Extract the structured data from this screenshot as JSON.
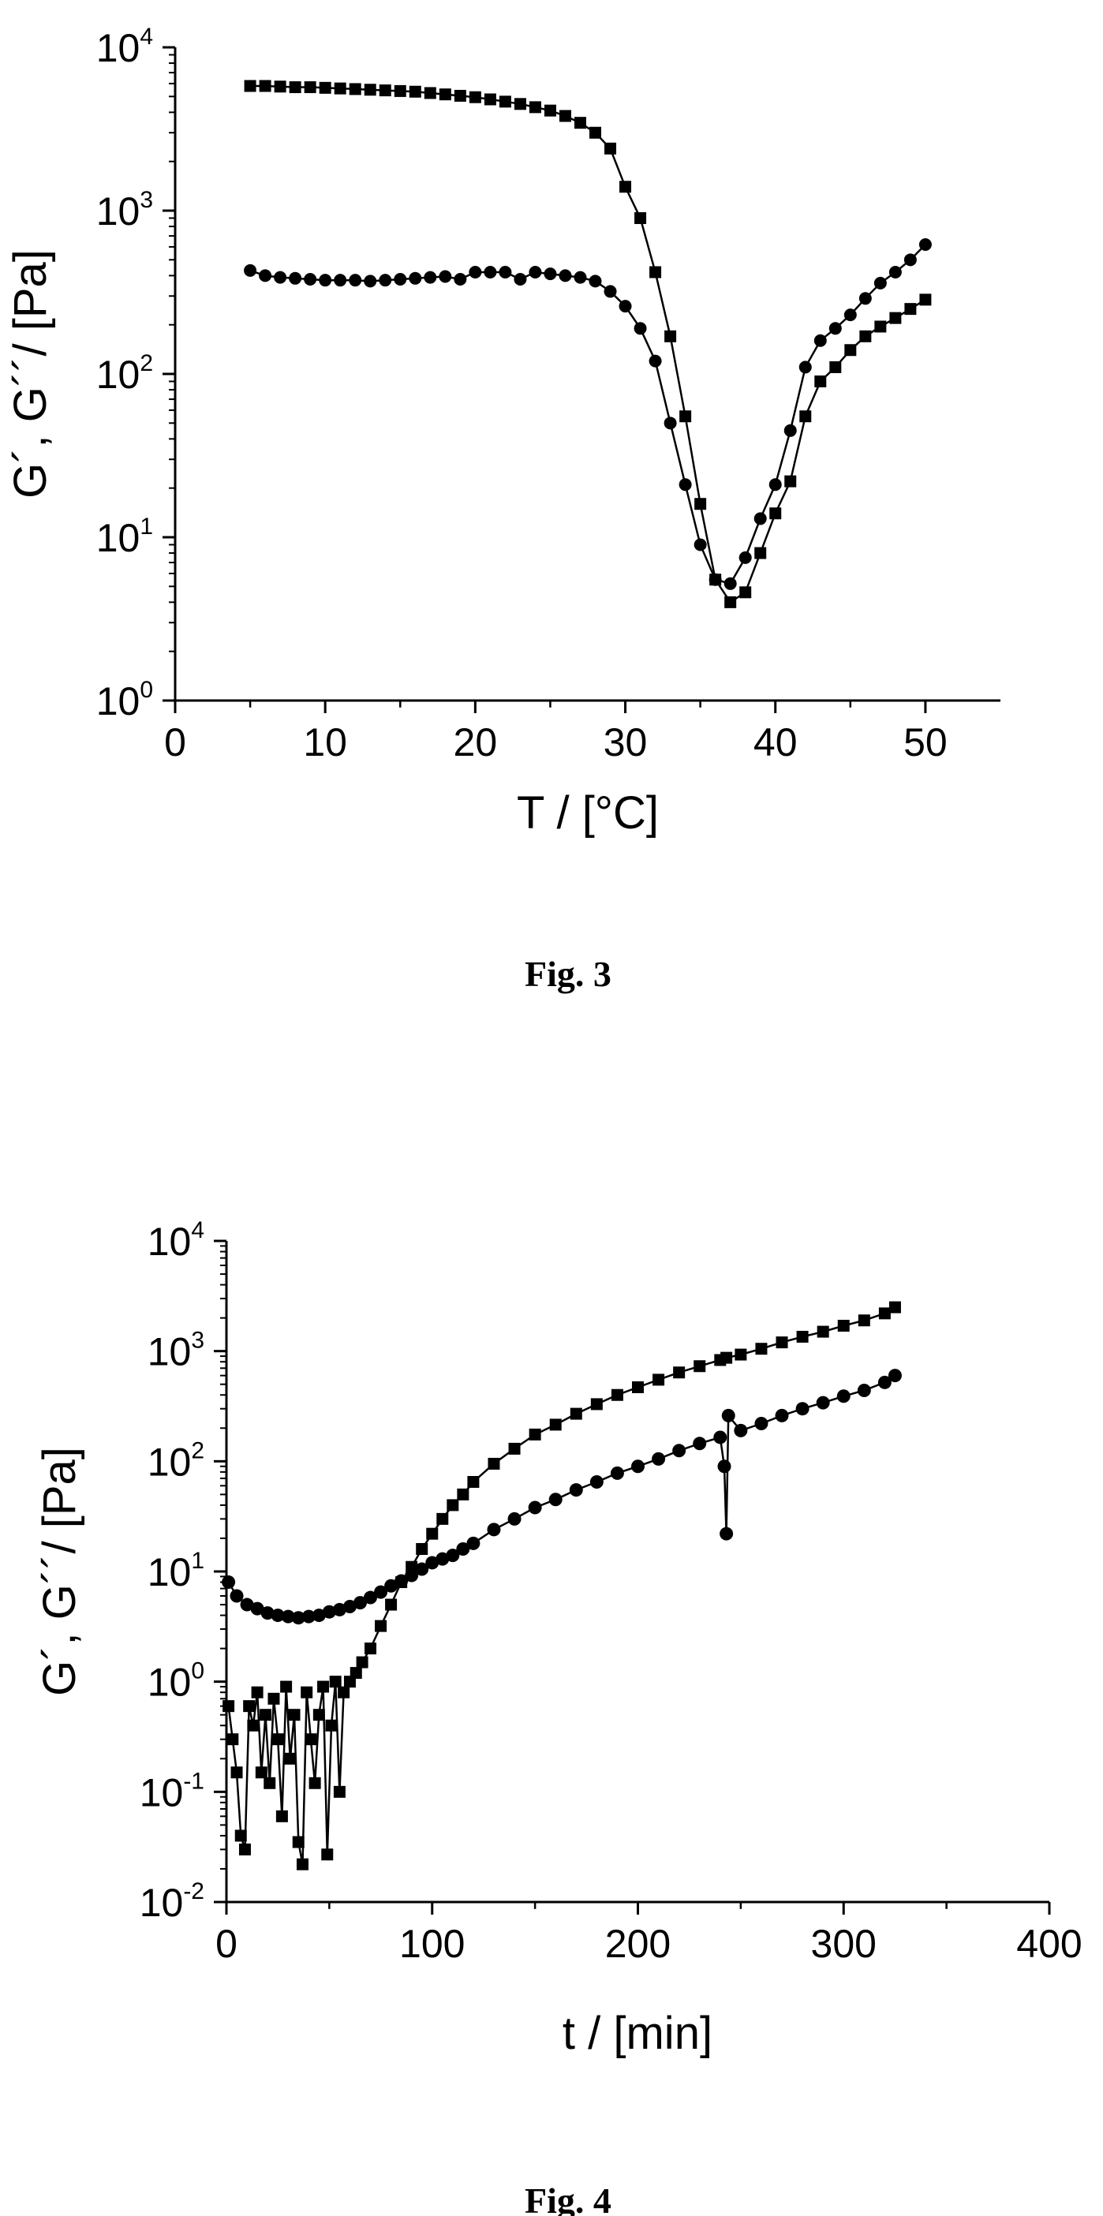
{
  "chart_data": [
    {
      "type": "scatter",
      "caption": "Fig. 3",
      "xlabel": "T / [°C]",
      "ylabel": "G´, G´´/ [Pa]",
      "xlim": [
        0,
        55
      ],
      "ylim": [
        1,
        10000
      ],
      "yscale": "log",
      "x_ticks": [
        0,
        10,
        20,
        30,
        40,
        50
      ],
      "y_ticks": [
        {
          "base": "10",
          "exp": "0",
          "value": 1
        },
        {
          "base": "10",
          "exp": "1",
          "value": 10
        },
        {
          "base": "10",
          "exp": "2",
          "value": 100
        },
        {
          "base": "10",
          "exp": "3",
          "value": 1000
        },
        {
          "base": "10",
          "exp": "4",
          "value": 10000
        }
      ],
      "grid": false,
      "series": [
        {
          "marker": "square",
          "x": [
            5,
            6,
            7,
            8,
            9,
            10,
            11,
            12,
            13,
            14,
            15,
            16,
            17,
            18,
            19,
            20,
            21,
            22,
            23,
            24,
            25,
            26,
            27,
            28,
            29,
            30,
            31,
            32,
            33,
            34,
            35,
            36,
            37,
            38,
            39,
            40,
            41,
            42,
            43,
            44,
            45,
            46,
            47,
            48,
            49,
            50
          ],
          "y": [
            5800,
            5800,
            5750,
            5700,
            5700,
            5650,
            5600,
            5550,
            5500,
            5450,
            5400,
            5350,
            5250,
            5150,
            5050,
            4950,
            4800,
            4650,
            4500,
            4300,
            4100,
            3800,
            3450,
            3000,
            2400,
            1400,
            900,
            420,
            170,
            55,
            16,
            5.5,
            4,
            4.6,
            8,
            14,
            22,
            55,
            90,
            110,
            140,
            170,
            195,
            220,
            250,
            285
          ]
        },
        {
          "marker": "circle",
          "x": [
            5,
            6,
            7,
            8,
            9,
            10,
            11,
            12,
            13,
            14,
            15,
            16,
            17,
            18,
            19,
            20,
            21,
            22,
            23,
            24,
            25,
            26,
            27,
            28,
            29,
            30,
            31,
            32,
            33,
            34,
            35,
            36,
            37,
            38,
            39,
            40,
            41,
            42,
            43,
            44,
            45,
            46,
            47,
            48,
            49,
            50
          ],
          "y": [
            430,
            400,
            390,
            385,
            380,
            375,
            375,
            375,
            370,
            375,
            380,
            385,
            390,
            395,
            380,
            420,
            420,
            420,
            380,
            420,
            410,
            400,
            390,
            370,
            320,
            260,
            190,
            120,
            50,
            21,
            9,
            5.5,
            5.2,
            7.5,
            13,
            21,
            45,
            110,
            160,
            190,
            230,
            290,
            360,
            420,
            500,
            620
          ]
        }
      ]
    },
    {
      "type": "scatter",
      "caption": "Fig. 4",
      "xlabel": "t / [min]",
      "ylabel": "G´, G´´/ [Pa]",
      "xlim": [
        0,
        400
      ],
      "ylim": [
        0.01,
        10000
      ],
      "yscale": "log",
      "x_ticks": [
        0,
        100,
        200,
        300,
        400
      ],
      "y_ticks": [
        {
          "base": "10",
          "exp": "-2",
          "value": 0.01
        },
        {
          "base": "10",
          "exp": "-1",
          "value": 0.1
        },
        {
          "base": "10",
          "exp": "0",
          "value": 1
        },
        {
          "base": "10",
          "exp": "1",
          "value": 10
        },
        {
          "base": "10",
          "exp": "2",
          "value": 100
        },
        {
          "base": "10",
          "exp": "3",
          "value": 1000
        },
        {
          "base": "10",
          "exp": "4",
          "value": 10000
        }
      ],
      "grid": false,
      "series": [
        {
          "marker": "square",
          "x": [
            1,
            3,
            5,
            7,
            9,
            11,
            13,
            15,
            17,
            19,
            21,
            23,
            25,
            27,
            29,
            31,
            33,
            35,
            37,
            39,
            41,
            43,
            45,
            47,
            49,
            51,
            53,
            55,
            57,
            60,
            63,
            66,
            70,
            75,
            80,
            85,
            90,
            95,
            100,
            105,
            110,
            115,
            120,
            130,
            140,
            150,
            160,
            170,
            180,
            190,
            200,
            210,
            220,
            230,
            240,
            243,
            250,
            260,
            270,
            280,
            290,
            300,
            310,
            320,
            325
          ],
          "y": [
            0.6,
            0.3,
            0.15,
            0.04,
            0.03,
            0.6,
            0.4,
            0.8,
            0.15,
            0.5,
            0.12,
            0.7,
            0.3,
            0.06,
            0.9,
            0.2,
            0.5,
            0.035,
            0.022,
            0.8,
            0.3,
            0.12,
            0.5,
            0.9,
            0.027,
            0.4,
            1.0,
            0.1,
            0.8,
            1.0,
            1.2,
            1.5,
            2.0,
            3.2,
            5,
            8,
            11,
            16,
            22,
            30,
            40,
            50,
            65,
            95,
            130,
            175,
            215,
            270,
            330,
            400,
            470,
            550,
            640,
            730,
            830,
            870,
            930,
            1050,
            1200,
            1350,
            1500,
            1700,
            1900,
            2200,
            2500
          ]
        },
        {
          "marker": "circle",
          "x": [
            1,
            5,
            10,
            15,
            20,
            25,
            30,
            35,
            40,
            45,
            50,
            55,
            60,
            65,
            70,
            75,
            80,
            85,
            90,
            95,
            100,
            105,
            110,
            115,
            120,
            130,
            140,
            150,
            160,
            170,
            180,
            190,
            200,
            210,
            220,
            230,
            240,
            242,
            243,
            244,
            250,
            260,
            270,
            280,
            290,
            300,
            310,
            320,
            325
          ],
          "y": [
            8,
            6,
            5,
            4.6,
            4.2,
            4.0,
            3.9,
            3.8,
            3.9,
            4.0,
            4.3,
            4.5,
            4.8,
            5.2,
            5.8,
            6.5,
            7.4,
            8.2,
            9.2,
            10.5,
            12,
            13,
            14,
            16,
            18,
            24,
            30,
            38,
            45,
            55,
            65,
            78,
            90,
            105,
            125,
            145,
            165,
            90,
            22,
            260,
            190,
            220,
            260,
            300,
            340,
            390,
            440,
            520,
            600
          ]
        }
      ]
    }
  ]
}
